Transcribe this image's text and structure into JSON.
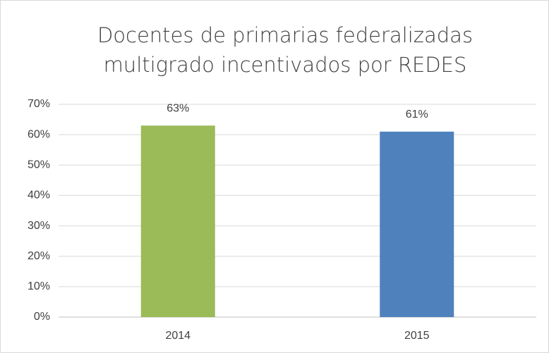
{
  "chart_data": {
    "type": "bar",
    "title": [
      "Docentes de primarias federalizadas",
      "multigrado incentivados por REDES"
    ],
    "categories": [
      "2014",
      "2015"
    ],
    "values": [
      63,
      61
    ],
    "value_labels": [
      "63%",
      "61%"
    ],
    "colors": [
      "#9bbb59",
      "#4f81bd"
    ],
    "ylim": [
      0,
      70
    ],
    "yticks": [
      {
        "value": 0,
        "label": "0%"
      },
      {
        "value": 10,
        "label": "10%"
      },
      {
        "value": 20,
        "label": "20%"
      },
      {
        "value": 30,
        "label": "30%"
      },
      {
        "value": 40,
        "label": "40%"
      },
      {
        "value": 50,
        "label": "50%"
      },
      {
        "value": 60,
        "label": "60%"
      },
      {
        "value": 70,
        "label": "70%"
      }
    ],
    "grid": true
  }
}
